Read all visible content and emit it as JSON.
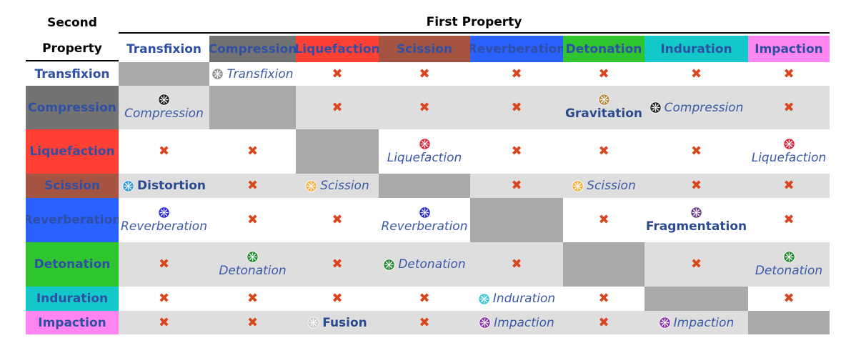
{
  "header": {
    "corner_line1": "Second",
    "corner_line2": "Property",
    "first_property": "First Property"
  },
  "properties": [
    {
      "name": "Transfixion",
      "bg": "#ffffff",
      "icon": "#8f8f8f"
    },
    {
      "name": "Compression",
      "bg": "#737373",
      "icon": "#1a1a1a"
    },
    {
      "name": "Liquefaction",
      "bg": "#ff4033",
      "icon": "#e8203a"
    },
    {
      "name": "Scission",
      "bg": "#a65442",
      "icon": "#f5b041"
    },
    {
      "name": "Reverberation",
      "bg": "#2a62ff",
      "icon": "#2424d4"
    },
    {
      "name": "Detonation",
      "bg": "#2fc52f",
      "icon": "#1f8a2a"
    },
    {
      "name": "Induration",
      "bg": "#12c8c8",
      "icon": "#35c9d6"
    },
    {
      "name": "Impaction",
      "bg": "#ff85f0",
      "icon": "#8a2fae"
    }
  ],
  "special_icons": {
    "Gravitation": "#b8863a",
    "Distortion": "#2a9ad8",
    "Fragmentation": "#6a3a8a",
    "Fusion": "#c8c8c8"
  },
  "cells": [
    [
      "-",
      {
        "label": "Transfixion",
        "layout": "inline",
        "style": "italic"
      },
      "x",
      "x",
      "x",
      "x",
      "x",
      "x"
    ],
    [
      {
        "label": "Compression",
        "layout": "stack",
        "style": "italic"
      },
      "-",
      "x",
      "x",
      "x",
      {
        "label": "Gravitation",
        "layout": "stack",
        "style": "bold"
      },
      {
        "label": "Compression",
        "layout": "inline",
        "style": "italic"
      },
      "x"
    ],
    [
      "x",
      "x",
      "-",
      {
        "label": "Liquefaction",
        "layout": "stack",
        "style": "italic"
      },
      "x",
      "x",
      "x",
      {
        "label": "Liquefaction",
        "layout": "stack",
        "style": "italic"
      }
    ],
    [
      {
        "label": "Distortion",
        "layout": "inline",
        "style": "bold"
      },
      "x",
      {
        "label": "Scission",
        "layout": "inline",
        "style": "italic"
      },
      "-",
      "x",
      {
        "label": "Scission",
        "layout": "inline",
        "style": "italic"
      },
      "x",
      "x"
    ],
    [
      {
        "label": "Reverberation",
        "layout": "stack",
        "style": "italic"
      },
      "x",
      "x",
      {
        "label": "Reverberation",
        "layout": "stack",
        "style": "italic"
      },
      "-",
      "x",
      {
        "label": "Fragmentation",
        "layout": "stack",
        "style": "bold"
      },
      "x"
    ],
    [
      "x",
      {
        "label": "Detonation",
        "layout": "stack",
        "style": "italic"
      },
      "x",
      {
        "label": "Detonation",
        "layout": "inline",
        "style": "italic"
      },
      "x",
      "-",
      "x",
      {
        "label": "Detonation",
        "layout": "stack",
        "style": "italic"
      }
    ],
    [
      "x",
      "x",
      "x",
      "x",
      {
        "label": "Induration",
        "layout": "inline",
        "style": "italic"
      },
      "x",
      "-",
      "x"
    ],
    [
      "x",
      "x",
      {
        "label": "Fusion",
        "layout": "inline",
        "style": "bold"
      },
      "x",
      {
        "label": "Impaction",
        "layout": "inline",
        "style": "italic"
      },
      "x",
      {
        "label": "Impaction",
        "layout": "inline",
        "style": "italic"
      },
      "-"
    ]
  ]
}
